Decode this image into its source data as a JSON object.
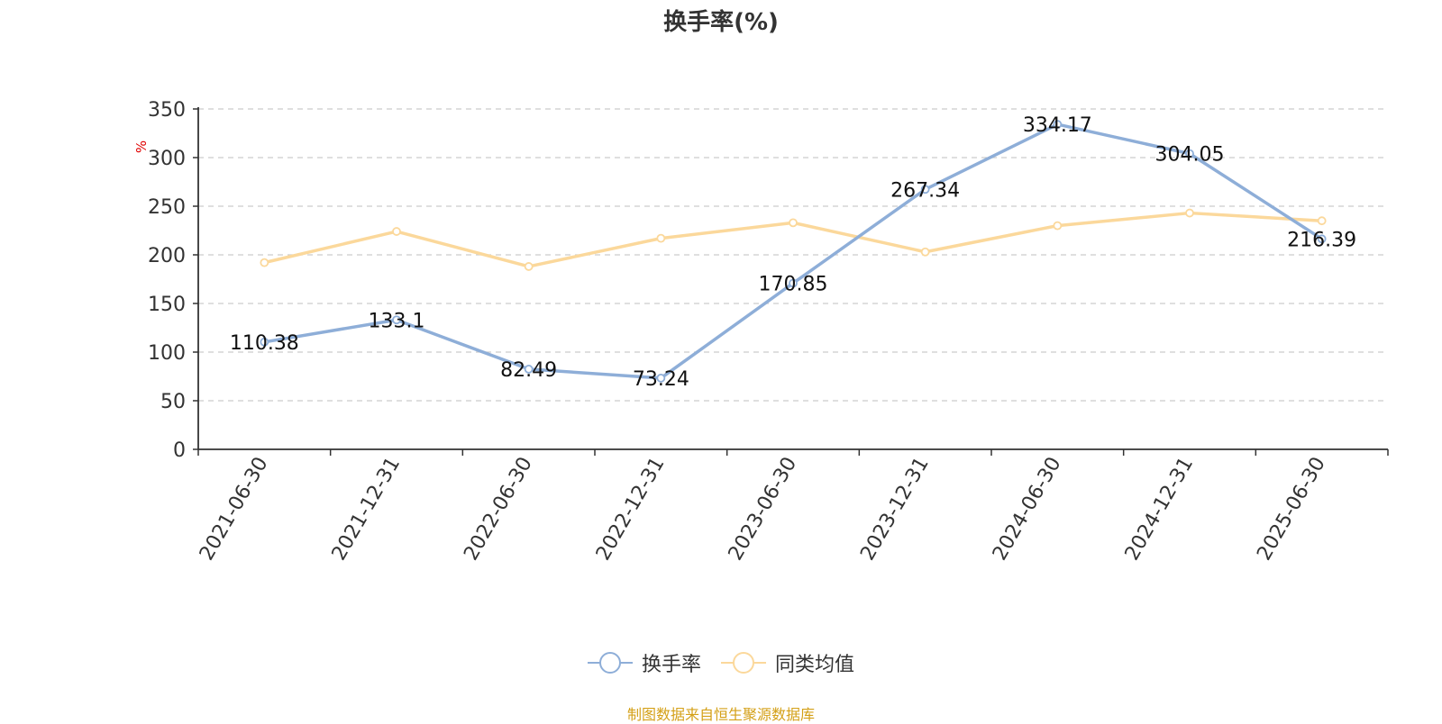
{
  "chart_data": {
    "type": "line",
    "title": "换手率(%)",
    "ylabel": "%",
    "ylim": [
      0,
      350
    ],
    "yticks": [
      0,
      50,
      100,
      150,
      200,
      250,
      300,
      350
    ],
    "categories": [
      "2021-06-30",
      "2021-12-31",
      "2022-06-30",
      "2022-12-31",
      "2023-06-30",
      "2023-12-31",
      "2024-06-30",
      "2024-12-31",
      "2025-06-30"
    ],
    "series": [
      {
        "name": "换手率",
        "color": "#8eaed8",
        "values": [
          110.38,
          133.1,
          82.49,
          73.24,
          170.85,
          267.34,
          334.17,
          304.05,
          216.39
        ],
        "labels": [
          "110.38",
          "133.1",
          "82.49",
          "73.24",
          "170.85",
          "267.34",
          "334.17",
          "304.05",
          "216.39"
        ]
      },
      {
        "name": "同类均值",
        "color": "#fbd89b",
        "values": [
          192,
          224,
          188,
          217,
          233,
          203,
          230,
          243,
          235
        ]
      }
    ],
    "grid": true,
    "legend_position": "bottom"
  },
  "source_text": "制图数据来自恒生聚源数据库"
}
